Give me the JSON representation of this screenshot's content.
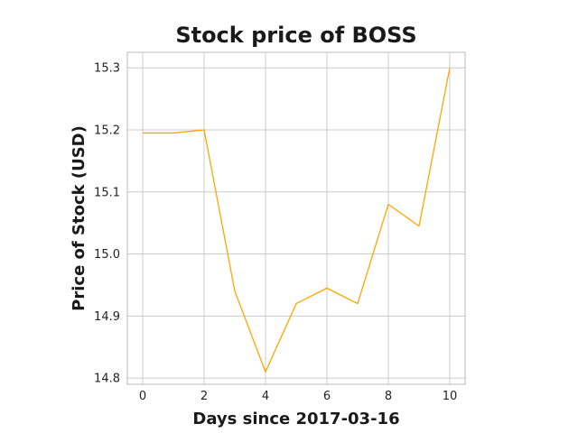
{
  "chart_data": {
    "type": "line",
    "title": "Stock price of BOSS",
    "xlabel": "Days since 2017-03-16",
    "ylabel": "Price of Stock (USD)",
    "x": [
      0,
      1,
      2,
      3,
      4,
      5,
      6,
      7,
      8,
      9,
      10
    ],
    "series": [
      {
        "values": [
          15.195,
          15.195,
          15.2,
          14.94,
          14.81,
          14.92,
          14.945,
          14.92,
          15.08,
          15.045,
          15.3
        ]
      }
    ],
    "xlim": [
      -0.5,
      10.5
    ],
    "ylim": [
      14.79,
      15.325
    ],
    "xticks": [
      "0",
      "2",
      "4",
      "6",
      "8",
      "10"
    ],
    "yticks": [
      "14.8",
      "14.9",
      "15.0",
      "15.1",
      "15.2",
      "15.3"
    ],
    "grid": true,
    "line_color": "#FFA500",
    "grid_color": "#cccccc",
    "frame_color": "#bbbbbb"
  }
}
